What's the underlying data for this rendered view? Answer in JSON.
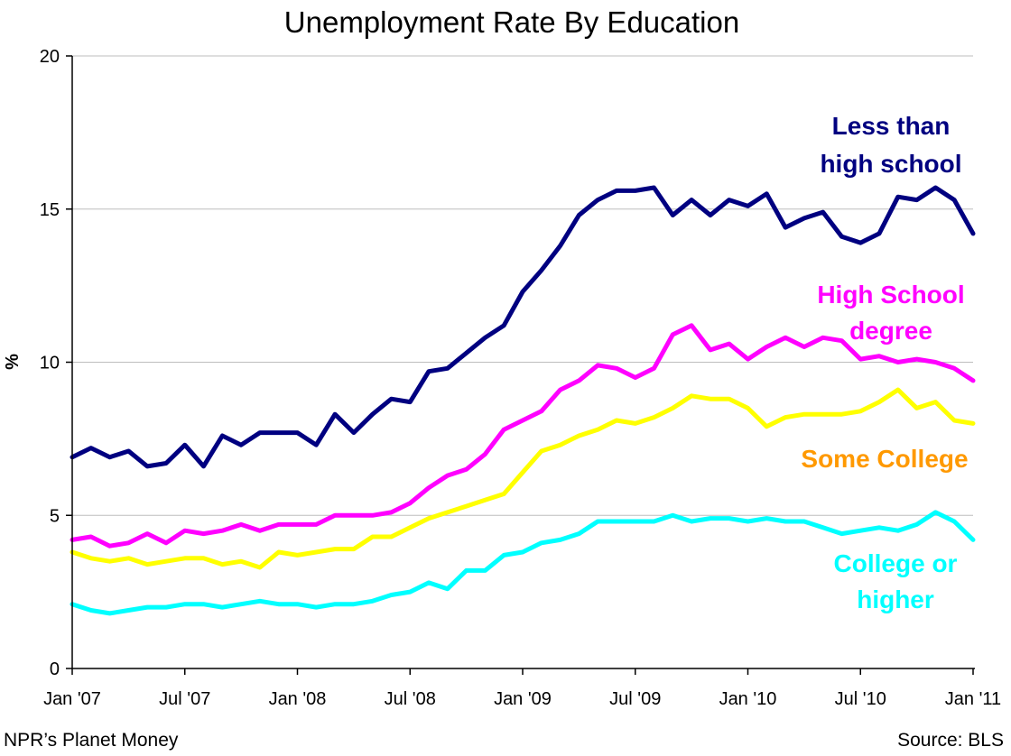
{
  "chart_data": {
    "type": "line",
    "title": "Unemployment Rate By Education",
    "ylabel": "%",
    "xlabel": "",
    "ylim": [
      0,
      20
    ],
    "yticks": [
      0,
      5,
      10,
      15,
      20
    ],
    "grid": true,
    "x_tick_labels": [
      "Jan '07",
      "Jul '07",
      "Jan '08",
      "Jul '08",
      "Jan '09",
      "Jul '09",
      "Jan '10",
      "Jul '10",
      "Jan '11"
    ],
    "x_start": "Jan 2007",
    "x_end": "Jan 2011",
    "series": [
      {
        "name": "Less than high school",
        "label_lines": [
          "Less than",
          "high school"
        ],
        "color": "#000080",
        "values": [
          6.9,
          7.2,
          6.9,
          7.1,
          6.6,
          6.7,
          7.3,
          6.6,
          7.6,
          7.3,
          7.7,
          7.7,
          7.7,
          7.3,
          8.3,
          7.7,
          8.3,
          8.8,
          8.7,
          9.7,
          9.8,
          10.3,
          10.8,
          11.2,
          12.3,
          13.0,
          13.8,
          14.8,
          15.3,
          15.6,
          15.6,
          15.7,
          14.8,
          15.3,
          14.8,
          15.3,
          15.1,
          15.5,
          14.4,
          14.7,
          14.9,
          14.1,
          13.9,
          14.2,
          15.4,
          15.3,
          15.7,
          15.3,
          14.2
        ]
      },
      {
        "name": "High School degree",
        "label_lines": [
          "High School",
          "degree"
        ],
        "color": "#ff00ff",
        "values": [
          4.2,
          4.3,
          4.0,
          4.1,
          4.4,
          4.1,
          4.5,
          4.4,
          4.5,
          4.7,
          4.5,
          4.7,
          4.7,
          4.7,
          5.0,
          5.0,
          5.0,
          5.1,
          5.4,
          5.9,
          6.3,
          6.5,
          7.0,
          7.8,
          8.1,
          8.4,
          9.1,
          9.4,
          9.9,
          9.8,
          9.5,
          9.8,
          10.9,
          11.2,
          10.4,
          10.6,
          10.1,
          10.5,
          10.8,
          10.5,
          10.8,
          10.7,
          10.1,
          10.2,
          10.0,
          10.1,
          10.0,
          9.8,
          9.4
        ]
      },
      {
        "name": "Some College",
        "label_lines": [
          "Some College"
        ],
        "label_color": "#ff9900",
        "color": "#ffff00",
        "values": [
          3.8,
          3.6,
          3.5,
          3.6,
          3.4,
          3.5,
          3.6,
          3.6,
          3.4,
          3.5,
          3.3,
          3.8,
          3.7,
          3.8,
          3.9,
          3.9,
          4.3,
          4.3,
          4.6,
          4.9,
          5.1,
          5.3,
          5.5,
          5.7,
          6.4,
          7.1,
          7.3,
          7.6,
          7.8,
          8.1,
          8.0,
          8.2,
          8.5,
          8.9,
          8.8,
          8.8,
          8.5,
          7.9,
          8.2,
          8.3,
          8.3,
          8.3,
          8.4,
          8.7,
          9.1,
          8.5,
          8.7,
          8.1,
          8.0
        ]
      },
      {
        "name": "College or higher",
        "label_lines": [
          "College or",
          "higher"
        ],
        "color": "#00ffff",
        "values": [
          2.1,
          1.9,
          1.8,
          1.9,
          2.0,
          2.0,
          2.1,
          2.1,
          2.0,
          2.1,
          2.2,
          2.1,
          2.1,
          2.0,
          2.1,
          2.1,
          2.2,
          2.4,
          2.5,
          2.8,
          2.6,
          3.2,
          3.2,
          3.7,
          3.8,
          4.1,
          4.2,
          4.4,
          4.8,
          4.8,
          4.8,
          4.8,
          5.0,
          4.8,
          4.9,
          4.9,
          4.8,
          4.9,
          4.8,
          4.8,
          4.6,
          4.4,
          4.5,
          4.6,
          4.5,
          4.7,
          5.1,
          4.8,
          4.2
        ]
      }
    ]
  },
  "footer": {
    "left": "NPR’s Planet Money",
    "right": "Source: BLS"
  }
}
